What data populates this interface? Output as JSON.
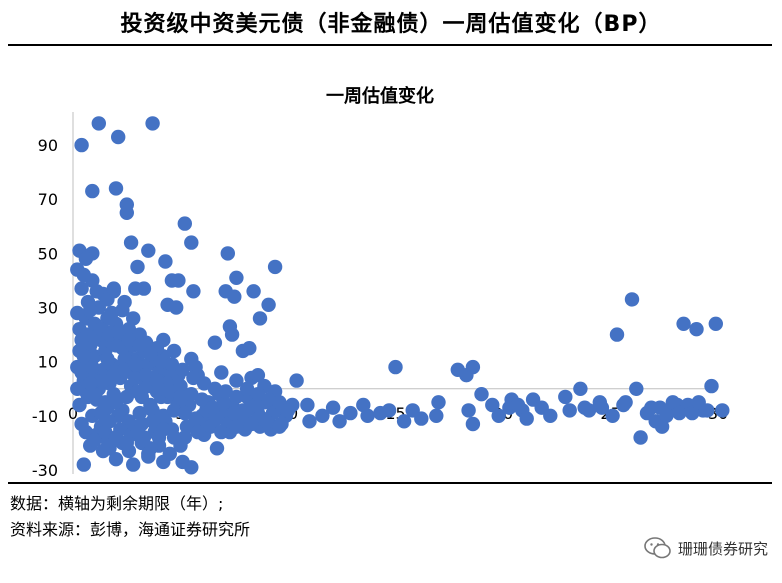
{
  "header": {
    "title": "投资级中资美元债（非金融债）一周估值变化（BP）"
  },
  "footer": {
    "note": "数据：横轴为剩余期限（年）;",
    "source": "资料来源：彭博，海通证券研究所",
    "brand": "珊珊债券研究",
    "brand_icon": "wechat-icon"
  },
  "chart_data": {
    "type": "scatter",
    "title": "一周估值变化",
    "xlabel": "",
    "ylabel": "",
    "xlim": [
      0,
      30
    ],
    "ylim": [
      -30,
      100
    ],
    "x_ticks": [
      0,
      5,
      10,
      15,
      20,
      25,
      30
    ],
    "y_ticks": [
      -30,
      -10,
      10,
      30,
      50,
      70,
      90
    ],
    "grid": false,
    "legend": "none",
    "marker_color": "#4472C4",
    "points": [
      [
        0.4,
        90
      ],
      [
        1.2,
        98
      ],
      [
        0.9,
        73
      ],
      [
        2.1,
        93
      ],
      [
        3.7,
        98
      ],
      [
        2.0,
        74
      ],
      [
        2.5,
        68
      ],
      [
        2.5,
        65
      ],
      [
        5.2,
        61
      ],
      [
        5.5,
        54
      ],
      [
        2.7,
        54
      ],
      [
        3.0,
        45
      ],
      [
        3.5,
        51
      ],
      [
        4.3,
        47
      ],
      [
        0.3,
        51
      ],
      [
        0.9,
        50
      ],
      [
        0.6,
        48
      ],
      [
        0.2,
        44
      ],
      [
        0.5,
        42
      ],
      [
        0.9,
        40
      ],
      [
        0.4,
        37
      ],
      [
        7.2,
        50
      ],
      [
        9.4,
        45
      ],
      [
        4.6,
        40
      ],
      [
        4.9,
        40
      ],
      [
        5.6,
        36
      ],
      [
        7.1,
        36
      ],
      [
        8.4,
        36
      ],
      [
        7.6,
        41
      ],
      [
        2.9,
        37
      ],
      [
        1.4,
        35
      ],
      [
        1.9,
        36
      ],
      [
        1.6,
        33
      ],
      [
        2.3,
        29
      ],
      [
        4.4,
        31
      ],
      [
        4.8,
        30
      ],
      [
        7.5,
        34
      ],
      [
        9.1,
        31
      ],
      [
        8.7,
        26
      ],
      [
        7.3,
        23
      ],
      [
        7.4,
        20
      ],
      [
        6.6,
        17
      ],
      [
        7.9,
        14
      ],
      [
        8.2,
        15
      ],
      [
        0.6,
        26
      ],
      [
        1.0,
        24
      ],
      [
        0.3,
        22
      ],
      [
        0.7,
        20
      ],
      [
        1.5,
        21
      ],
      [
        2.2,
        19
      ],
      [
        2.6,
        22
      ],
      [
        3.1,
        20
      ],
      [
        4.2,
        18
      ],
      [
        5.5,
        11
      ],
      [
        5.7,
        8
      ],
      [
        5.8,
        5
      ],
      [
        6.9,
        6
      ],
      [
        7.6,
        3
      ],
      [
        8.3,
        4
      ],
      [
        8.6,
        5
      ],
      [
        8.9,
        1
      ],
      [
        10.4,
        3
      ],
      [
        9.4,
        -1
      ],
      [
        10.9,
        -6
      ],
      [
        15.0,
        8
      ],
      [
        17.0,
        -5
      ],
      [
        17.9,
        7
      ],
      [
        18.3,
        5
      ],
      [
        18.6,
        8
      ],
      [
        18.4,
        -8
      ],
      [
        19.0,
        -2
      ],
      [
        19.5,
        -6
      ],
      [
        19.8,
        -10
      ],
      [
        20.4,
        -4
      ],
      [
        21.4,
        -4
      ],
      [
        21.8,
        -7
      ],
      [
        22.2,
        -10
      ],
      [
        22.9,
        -3
      ],
      [
        23.6,
        0
      ],
      [
        24.6,
        -7
      ],
      [
        25.7,
        -5
      ],
      [
        25.3,
        20
      ],
      [
        26.0,
        33
      ],
      [
        26.2,
        0
      ],
      [
        26.7,
        -9
      ],
      [
        27.1,
        -12
      ],
      [
        27.4,
        -14
      ],
      [
        27.8,
        -8
      ],
      [
        28.1,
        -6
      ],
      [
        28.4,
        24
      ],
      [
        28.6,
        -6
      ],
      [
        29.0,
        22
      ],
      [
        29.3,
        -8
      ],
      [
        29.7,
        1
      ],
      [
        29.9,
        24
      ],
      [
        30.2,
        -8
      ],
      [
        26.4,
        -18
      ],
      [
        26.9,
        -7
      ],
      [
        27.3,
        -7
      ],
      [
        27.6,
        -10
      ],
      [
        27.9,
        -5
      ],
      [
        28.2,
        -9
      ],
      [
        28.8,
        -9
      ],
      [
        29.1,
        -5
      ],
      [
        29.5,
        -8
      ],
      [
        24.0,
        -8
      ],
      [
        25.6,
        -6
      ],
      [
        20.9,
        -8
      ],
      [
        15.4,
        -12
      ],
      [
        16.2,
        -11
      ],
      [
        12.4,
        -12
      ],
      [
        13.7,
        -10
      ],
      [
        12.1,
        -7
      ],
      [
        13.5,
        -6
      ],
      [
        18.6,
        -13
      ],
      [
        20.3,
        -7
      ],
      [
        0.5,
        -28
      ],
      [
        2.8,
        -28
      ],
      [
        3.5,
        -25
      ],
      [
        4.2,
        -27
      ],
      [
        5.1,
        -27
      ],
      [
        5.5,
        -29
      ],
      [
        1.7,
        -22
      ],
      [
        2.3,
        -20
      ],
      [
        6.7,
        -22
      ],
      [
        7.3,
        -16
      ],
      [
        8.0,
        -15
      ],
      [
        8.5,
        -12
      ],
      [
        9.2,
        -15
      ],
      [
        9.9,
        -10
      ],
      [
        11.0,
        -12
      ],
      [
        9.5,
        -7
      ],
      [
        8.9,
        -5
      ],
      [
        8.1,
        -3
      ],
      [
        7.0,
        -9
      ],
      [
        6.5,
        -12
      ],
      [
        6.0,
        -10
      ],
      [
        5.4,
        -6
      ],
      [
        4.8,
        -4
      ],
      [
        4.3,
        -12
      ],
      [
        3.8,
        -16
      ],
      [
        3.2,
        -20
      ],
      [
        2.8,
        -14
      ],
      [
        2.3,
        -8
      ],
      [
        1.9,
        -2
      ],
      [
        1.3,
        -14
      ],
      [
        0.9,
        -10
      ],
      [
        0.4,
        -13
      ],
      [
        1.1,
        -17
      ],
      [
        1.6,
        -19
      ],
      [
        2.6,
        -23
      ],
      [
        3.3,
        -18
      ],
      [
        4.0,
        -21
      ],
      [
        4.6,
        -15
      ],
      [
        5.2,
        -18
      ],
      [
        5.9,
        -13
      ],
      [
        6.3,
        -5
      ],
      [
        6.8,
        -2
      ],
      [
        7.4,
        -6
      ],
      [
        7.9,
        -8
      ],
      [
        8.6,
        -9
      ],
      [
        9.1,
        -11
      ],
      [
        9.7,
        -13
      ],
      [
        10.2,
        -6
      ],
      [
        6.1,
        -17
      ],
      [
        5.0,
        -21
      ],
      [
        4.5,
        -24
      ],
      [
        3.6,
        -22
      ],
      [
        2.0,
        -26
      ],
      [
        1.4,
        -23
      ],
      [
        0.8,
        -21
      ],
      [
        0.3,
        -6
      ],
      [
        0.7,
        -3
      ],
      [
        1.2,
        0
      ],
      [
        1.7,
        2
      ],
      [
        2.2,
        4
      ],
      [
        2.7,
        6
      ],
      [
        3.2,
        8
      ],
      [
        3.7,
        10
      ],
      [
        4.2,
        12
      ],
      [
        4.7,
        14
      ],
      [
        0.2,
        8
      ],
      [
        0.6,
        10
      ],
      [
        1.0,
        12
      ],
      [
        1.5,
        14
      ],
      [
        2.0,
        16
      ],
      [
        2.5,
        13
      ],
      [
        3.0,
        11
      ],
      [
        3.5,
        9
      ],
      [
        4.0,
        6
      ],
      [
        4.5,
        3
      ],
      [
        5.0,
        1
      ],
      [
        0.5,
        3
      ],
      [
        0.9,
        5
      ],
      [
        1.4,
        7
      ],
      [
        1.8,
        9
      ],
      [
        2.4,
        11
      ],
      [
        2.9,
        4
      ],
      [
        3.4,
        2
      ],
      [
        3.9,
        -1
      ],
      [
        4.4,
        -3
      ],
      [
        4.9,
        -6
      ],
      [
        1.1,
        -4
      ],
      [
        1.6,
        -7
      ],
      [
        2.1,
        -10
      ],
      [
        2.6,
        -12
      ],
      [
        3.1,
        -9
      ],
      [
        3.6,
        -6
      ],
      [
        4.1,
        -3
      ],
      [
        0.3,
        14
      ],
      [
        0.8,
        16
      ],
      [
        1.3,
        18
      ],
      [
        1.8,
        17
      ],
      [
        2.3,
        15
      ],
      [
        2.8,
        16
      ],
      [
        3.3,
        14
      ],
      [
        3.8,
        12
      ],
      [
        0.4,
        18
      ],
      [
        1.0,
        19
      ],
      [
        1.6,
        11
      ],
      [
        2.2,
        8
      ],
      [
        2.7,
        1
      ],
      [
        3.2,
        -3
      ],
      [
        3.7,
        -8
      ],
      [
        4.2,
        -10
      ],
      [
        4.7,
        -8
      ],
      [
        5.2,
        -9
      ],
      [
        5.7,
        -11
      ],
      [
        6.2,
        -8
      ],
      [
        6.7,
        -11
      ],
      [
        7.2,
        -13
      ],
      [
        7.7,
        -11
      ],
      [
        8.2,
        -7
      ],
      [
        8.7,
        -14
      ],
      [
        9.3,
        -9
      ],
      [
        0.2,
        0
      ],
      [
        0.6,
        -1
      ],
      [
        1.0,
        -2
      ],
      [
        1.5,
        -5
      ],
      [
        2.0,
        -5
      ],
      [
        2.5,
        -3
      ],
      [
        3.0,
        -1
      ],
      [
        3.5,
        1
      ],
      [
        4.0,
        0
      ],
      [
        4.5,
        -1
      ],
      [
        5.0,
        -3
      ],
      [
        5.5,
        -2
      ],
      [
        6.0,
        -4
      ],
      [
        6.5,
        -7
      ],
      [
        7.0,
        -5
      ],
      [
        7.5,
        -9
      ],
      [
        8.0,
        -11
      ],
      [
        8.5,
        -6
      ],
      [
        0.4,
        6
      ],
      [
        0.9,
        8
      ],
      [
        1.4,
        3
      ],
      [
        1.9,
        5
      ],
      [
        2.4,
        7
      ],
      [
        2.9,
        9
      ],
      [
        3.4,
        5
      ],
      [
        3.9,
        3
      ],
      [
        4.4,
        7
      ],
      [
        4.9,
        5
      ],
      [
        1.2,
        30
      ],
      [
        1.8,
        28
      ],
      [
        2.4,
        32
      ],
      [
        1.6,
        26
      ],
      [
        2.0,
        24
      ],
      [
        2.8,
        26
      ],
      [
        3.4,
        17
      ],
      [
        3.9,
        15
      ],
      [
        0.7,
        32
      ],
      [
        1.1,
        36
      ],
      [
        0.5,
        12
      ],
      [
        0.8,
        2
      ],
      [
        1.3,
        -9
      ],
      [
        1.7,
        -12
      ],
      [
        2.2,
        -15
      ],
      [
        2.7,
        -17
      ],
      [
        3.2,
        -13
      ],
      [
        3.7,
        -12
      ],
      [
        4.2,
        -15
      ],
      [
        4.7,
        -18
      ],
      [
        5.3,
        -14
      ],
      [
        5.8,
        -16
      ],
      [
        6.4,
        -14
      ],
      [
        6.9,
        -16
      ],
      [
        7.6,
        -14
      ],
      [
        8.3,
        -13
      ],
      [
        9.0,
        -12
      ],
      [
        9.6,
        -14
      ],
      [
        0.6,
        -16
      ],
      [
        1.0,
        -19
      ],
      [
        1.5,
        -16
      ],
      [
        2.0,
        -18
      ],
      [
        2.5,
        -20
      ],
      [
        3.0,
        -16
      ],
      [
        3.5,
        -24
      ],
      [
        4.0,
        -18
      ],
      [
        1.3,
        22
      ],
      [
        1.7,
        20
      ],
      [
        2.1,
        21
      ],
      [
        2.6,
        18
      ],
      [
        3.1,
        16
      ],
      [
        3.6,
        13
      ],
      [
        4.1,
        10
      ],
      [
        4.6,
        9
      ],
      [
        5.1,
        7
      ],
      [
        5.6,
        4
      ],
      [
        6.1,
        2
      ],
      [
        6.6,
        0
      ],
      [
        7.1,
        -1
      ],
      [
        7.6,
        -3
      ],
      [
        8.1,
        0
      ],
      [
        8.6,
        -2
      ],
      [
        9.1,
        -4
      ],
      [
        9.6,
        -5
      ],
      [
        10.0,
        -8
      ],
      [
        11.6,
        -10
      ],
      [
        12.9,
        -9
      ],
      [
        14.3,
        -9
      ],
      [
        15.8,
        -8
      ],
      [
        16.9,
        -10
      ],
      [
        14.7,
        -8
      ],
      [
        20.7,
        -6
      ],
      [
        21.1,
        -11
      ],
      [
        23.1,
        -8
      ],
      [
        23.8,
        -7
      ],
      [
        25.1,
        -10
      ],
      [
        24.5,
        -5
      ],
      [
        1.9,
        37
      ],
      [
        3.3,
        37
      ],
      [
        0.2,
        28
      ],
      [
        0.8,
        29
      ]
    ]
  }
}
